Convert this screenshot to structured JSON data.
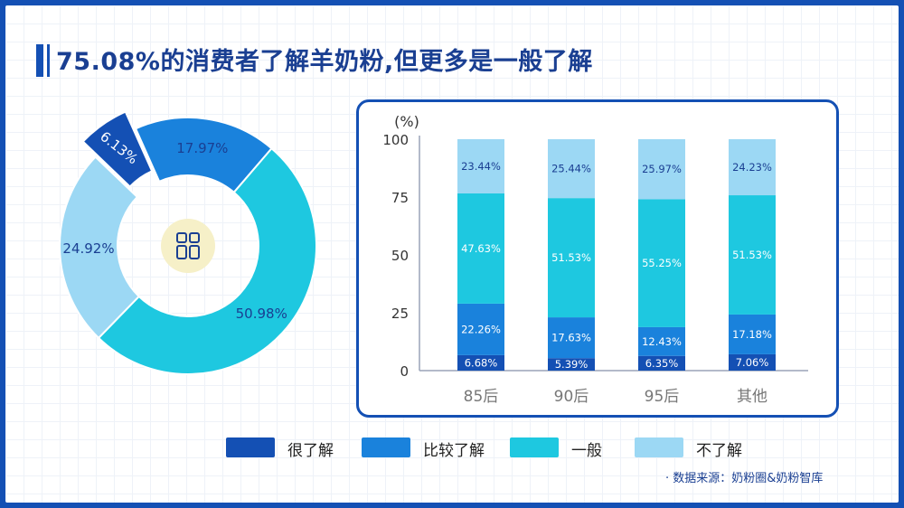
{
  "title": "75.08%的消费者了解羊奶粉,但更多是一般了解",
  "source": "· 数据来源：奶粉圈&奶粉智库",
  "legend": [
    {
      "label": "很了解",
      "color": "#1450b4"
    },
    {
      "label": "比较了解",
      "color": "#1a82dc"
    },
    {
      "label": "一般",
      "color": "#1ec8e0"
    },
    {
      "label": "不了解",
      "color": "#9cd8f4"
    }
  ],
  "chart_data": [
    {
      "type": "pie",
      "donut": true,
      "center_icon": "grid-window-icon",
      "slices": [
        {
          "label": "很了解",
          "value": 6.13,
          "display": "6.13%",
          "color": "#1450b4",
          "exploded": true
        },
        {
          "label": "比较了解",
          "value": 17.97,
          "display": "17.97%",
          "color": "#1a82dc"
        },
        {
          "label": "一般",
          "value": 50.98,
          "display": "50.98%",
          "color": "#1ec8e0"
        },
        {
          "label": "不了解",
          "value": 24.92,
          "display": "24.92%",
          "color": "#9cd8f4"
        }
      ]
    },
    {
      "type": "bar",
      "stacked": true,
      "categories": [
        "85后",
        "90后",
        "95后",
        "其他"
      ],
      "ylabel": "(%)",
      "ylim": [
        0,
        100
      ],
      "yticks": [
        0,
        25,
        50,
        75,
        100
      ],
      "series": [
        {
          "name": "很了解",
          "color": "#1450b4",
          "values": [
            6.68,
            5.39,
            6.35,
            7.06
          ],
          "labels": [
            "6.68%",
            "5.39%",
            "6.35%",
            "7.06%"
          ]
        },
        {
          "name": "比较了解",
          "color": "#1a82dc",
          "values": [
            22.26,
            17.63,
            12.43,
            17.18
          ],
          "labels": [
            "22.26%",
            "17.63%",
            "12.43%",
            "17.18%"
          ]
        },
        {
          "name": "一般",
          "color": "#1ec8e0",
          "values": [
            47.63,
            51.53,
            55.25,
            51.53
          ],
          "labels": [
            "47.63%",
            "51.53%",
            "55.25%",
            "51.53%"
          ]
        },
        {
          "name": "不了解",
          "color": "#9cd8f4",
          "values": [
            23.44,
            25.44,
            25.97,
            24.23
          ],
          "labels": [
            "23.44%",
            "25.44%",
            "25.97%",
            "24.23%"
          ]
        }
      ]
    }
  ]
}
